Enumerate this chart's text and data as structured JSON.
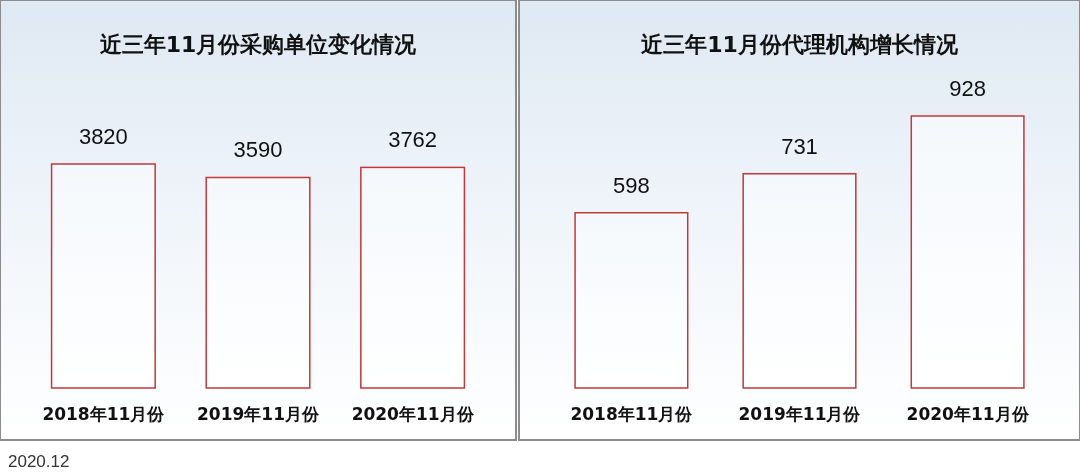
{
  "chart_data": [
    {
      "type": "bar",
      "title": "近三年11月份采购单位变化情况",
      "categories": [
        "2018年11月份",
        "2019年11月份",
        "2020年11月份"
      ],
      "values": [
        3820,
        3590,
        3762
      ],
      "color": "#c0393b",
      "data_labels": true,
      "tick_labels": "x"
    },
    {
      "type": "bar",
      "title": "近三年11月份代理机构增长情况",
      "categories": [
        "2018年11月份",
        "2019年11月份",
        "2020年11月份"
      ],
      "values": [
        598,
        731,
        928
      ],
      "color": "#c0393b",
      "data_labels": true,
      "tick_labels": "x",
      "annotations": [
        "2020.12"
      ]
    }
  ]
}
